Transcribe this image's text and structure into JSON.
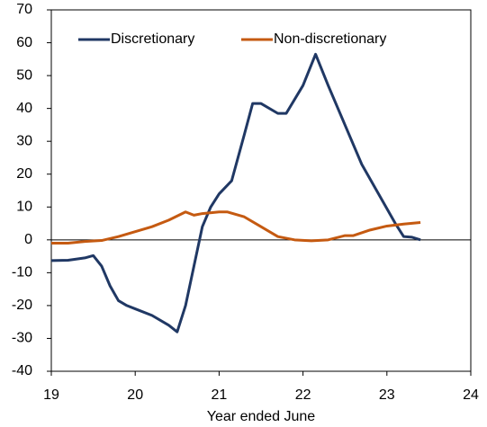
{
  "chart_data": {
    "type": "line",
    "x_label": "Year ended June",
    "xlim": [
      19,
      24
    ],
    "xticks": [
      19,
      20,
      21,
      22,
      23,
      24
    ],
    "ylim": [
      -40,
      70
    ],
    "yticks": [
      -40,
      -30,
      -20,
      -10,
      0,
      10,
      20,
      30,
      40,
      50,
      60,
      70
    ],
    "legend": "top-left",
    "series": [
      {
        "name": "Discretionary",
        "color": "#203864",
        "x": [
          19.0,
          19.2,
          19.4,
          19.5,
          19.6,
          19.7,
          19.8,
          19.9,
          20.0,
          20.2,
          20.4,
          20.5,
          20.6,
          20.7,
          20.8,
          20.9,
          21.0,
          21.15,
          21.3,
          21.4,
          21.5,
          21.7,
          21.8,
          22.0,
          22.15,
          22.3,
          22.5,
          22.7,
          22.9,
          23.1,
          23.2,
          23.3,
          23.4
        ],
        "values": [
          -6.3,
          -6.2,
          -5.5,
          -4.8,
          -8,
          -14,
          -18.5,
          -20,
          -21,
          -23,
          -26,
          -28,
          -20,
          -8,
          4,
          10,
          14,
          18,
          32,
          41.5,
          41.5,
          38.5,
          38.5,
          47,
          56.5,
          47,
          35,
          23,
          14,
          5,
          1,
          0.8,
          0
        ]
      },
      {
        "name": "Non-discretionary",
        "color": "#c55a11",
        "x": [
          19.0,
          19.2,
          19.4,
          19.6,
          19.8,
          20.0,
          20.2,
          20.4,
          20.6,
          20.7,
          20.8,
          21.0,
          21.1,
          21.3,
          21.5,
          21.7,
          21.9,
          22.1,
          22.3,
          22.5,
          22.6,
          22.8,
          23.0,
          23.2,
          23.4
        ],
        "values": [
          -1,
          -1,
          -0.5,
          -0.2,
          1,
          2.5,
          4,
          6,
          8.5,
          7.5,
          8,
          8.5,
          8.5,
          7,
          4,
          1,
          0,
          -0.3,
          0,
          1.3,
          1.3,
          3,
          4.2,
          4.8,
          5.3
        ]
      }
    ]
  }
}
